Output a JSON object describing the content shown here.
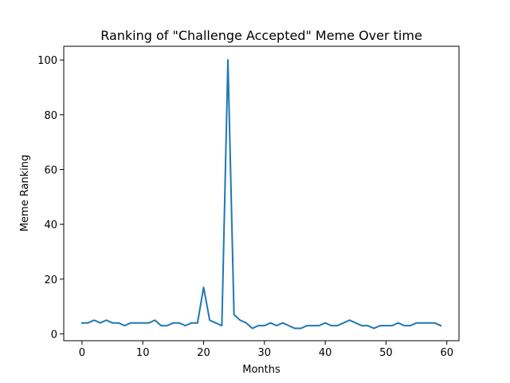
{
  "chart_data": {
    "type": "line",
    "title": "Ranking of \"Challenge Accepted\" Meme Over time",
    "xlabel": "Months",
    "ylabel": "Meme Ranking",
    "xlim": [
      -3,
      62
    ],
    "ylim": [
      -2.5,
      105
    ],
    "xticks": [
      0,
      10,
      20,
      30,
      40,
      50,
      60
    ],
    "yticks": [
      0,
      20,
      40,
      60,
      80,
      100
    ],
    "grid": false,
    "colors": {
      "line": "#1f77b4",
      "axes": "#000000",
      "background": "#ffffff"
    },
    "series": [
      {
        "x": [
          0,
          1,
          2,
          3,
          4,
          5,
          6,
          7,
          8,
          9,
          10,
          11,
          12,
          13,
          14,
          15,
          16,
          17,
          18,
          19,
          20,
          21,
          22,
          23,
          24,
          25,
          26,
          27,
          28,
          29,
          30,
          31,
          32,
          33,
          34,
          35,
          36,
          37,
          38,
          39,
          40,
          41,
          42,
          43,
          44,
          45,
          46,
          47,
          48,
          49,
          50,
          51,
          52,
          53,
          54,
          55,
          56,
          57,
          58,
          59
        ],
        "values": [
          4,
          4,
          5,
          4,
          5,
          4,
          4,
          3,
          4,
          4,
          4,
          4,
          5,
          3,
          3,
          4,
          4,
          3,
          4,
          4,
          17,
          5,
          4,
          3,
          100,
          7,
          5,
          4,
          2,
          3,
          3,
          4,
          3,
          4,
          3,
          2,
          2,
          3,
          3,
          3,
          4,
          3,
          3,
          4,
          5,
          4,
          3,
          3,
          2,
          3,
          3,
          3,
          4,
          3,
          3,
          4,
          4,
          4,
          4,
          3
        ]
      }
    ]
  }
}
